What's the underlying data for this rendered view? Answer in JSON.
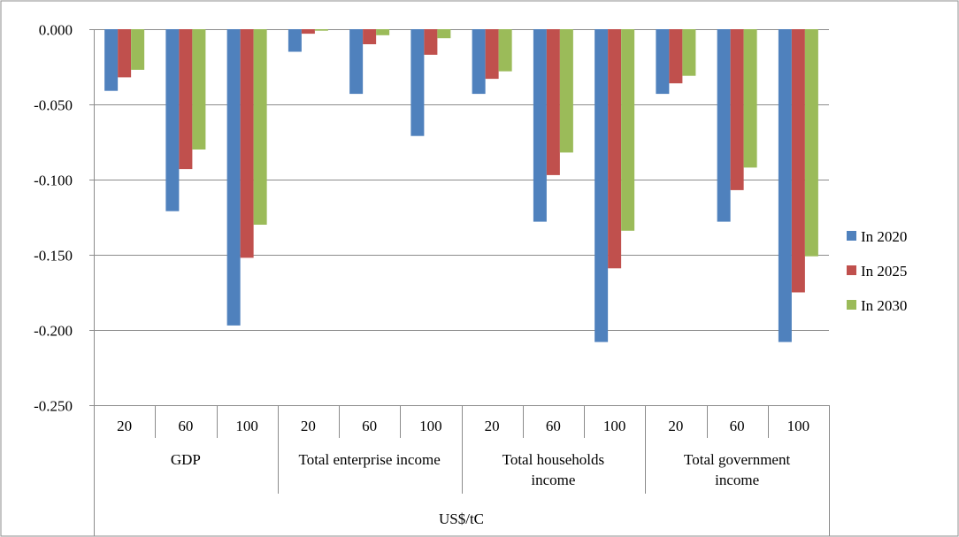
{
  "chart_data": {
    "type": "bar",
    "title": "",
    "xlabel": "US$/tC",
    "ylabel": "",
    "ylim": [
      -0.25,
      0.0
    ],
    "yticks": [
      "0.000",
      "-0.050",
      "-0.100",
      "-0.150",
      "-0.200",
      "-0.250"
    ],
    "ytick_values": [
      0.0,
      -0.05,
      -0.1,
      -0.15,
      -0.2,
      -0.25
    ],
    "grid": true,
    "legend_position": "right",
    "groups": [
      {
        "lines": [
          "GDP"
        ],
        "categories": [
          "20",
          "60",
          "100"
        ]
      },
      {
        "lines": [
          "Total enterprise income"
        ],
        "categories": [
          "20",
          "60",
          "100"
        ]
      },
      {
        "lines": [
          "Total households",
          "income"
        ],
        "categories": [
          "20",
          "60",
          "100"
        ]
      },
      {
        "lines": [
          "Total government",
          "income"
        ],
        "categories": [
          "20",
          "60",
          "100"
        ]
      }
    ],
    "series": [
      {
        "name": "In 2020",
        "color": "#4F81BD",
        "values": [
          -0.041,
          -0.121,
          -0.197,
          -0.015,
          -0.043,
          -0.071,
          -0.043,
          -0.128,
          -0.208,
          -0.043,
          -0.128,
          -0.208
        ]
      },
      {
        "name": "In 2025",
        "color": "#C0504D",
        "values": [
          -0.032,
          -0.093,
          -0.152,
          -0.003,
          -0.01,
          -0.017,
          -0.033,
          -0.097,
          -0.159,
          -0.036,
          -0.107,
          -0.175
        ]
      },
      {
        "name": "In 2030",
        "color": "#9BBB59",
        "values": [
          -0.027,
          -0.08,
          -0.13,
          -0.001,
          -0.004,
          -0.006,
          -0.028,
          -0.082,
          -0.134,
          -0.031,
          -0.092,
          -0.151
        ]
      }
    ]
  }
}
